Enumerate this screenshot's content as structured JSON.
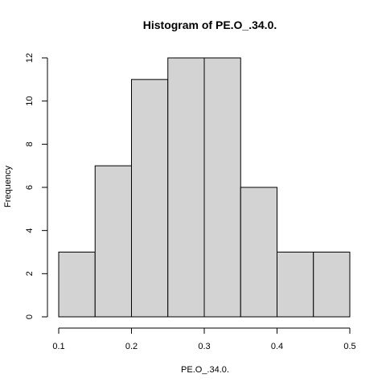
{
  "chart_data": {
    "type": "bar",
    "subtype": "histogram",
    "title": "Histogram of PE.O_.34.0.",
    "xlabel": "PE.O_.34.0.",
    "ylabel": "Frequency",
    "bins": [
      {
        "from": 0.1,
        "to": 0.15,
        "count": 3
      },
      {
        "from": 0.15,
        "to": 0.2,
        "count": 7
      },
      {
        "from": 0.2,
        "to": 0.25,
        "count": 11
      },
      {
        "from": 0.25,
        "to": 0.3,
        "count": 12
      },
      {
        "from": 0.3,
        "to": 0.35,
        "count": 12
      },
      {
        "from": 0.35,
        "to": 0.4,
        "count": 6
      },
      {
        "from": 0.4,
        "to": 0.45,
        "count": 3
      },
      {
        "from": 0.45,
        "to": 0.5,
        "count": 3
      }
    ],
    "xlim": [
      0.1,
      0.5
    ],
    "ylim": [
      0,
      12
    ],
    "xticks": [
      0.1,
      0.2,
      0.3,
      0.4,
      0.5
    ],
    "xtick_labels": [
      "0.1",
      "0.2",
      "0.3",
      "0.4",
      "0.5"
    ],
    "yticks": [
      0,
      2,
      4,
      6,
      8,
      10,
      12
    ],
    "ytick_labels": [
      "0",
      "2",
      "4",
      "6",
      "8",
      "10",
      "12"
    ],
    "grid": false,
    "bar_fill": "#d3d3d3",
    "bar_stroke": "#000000"
  }
}
